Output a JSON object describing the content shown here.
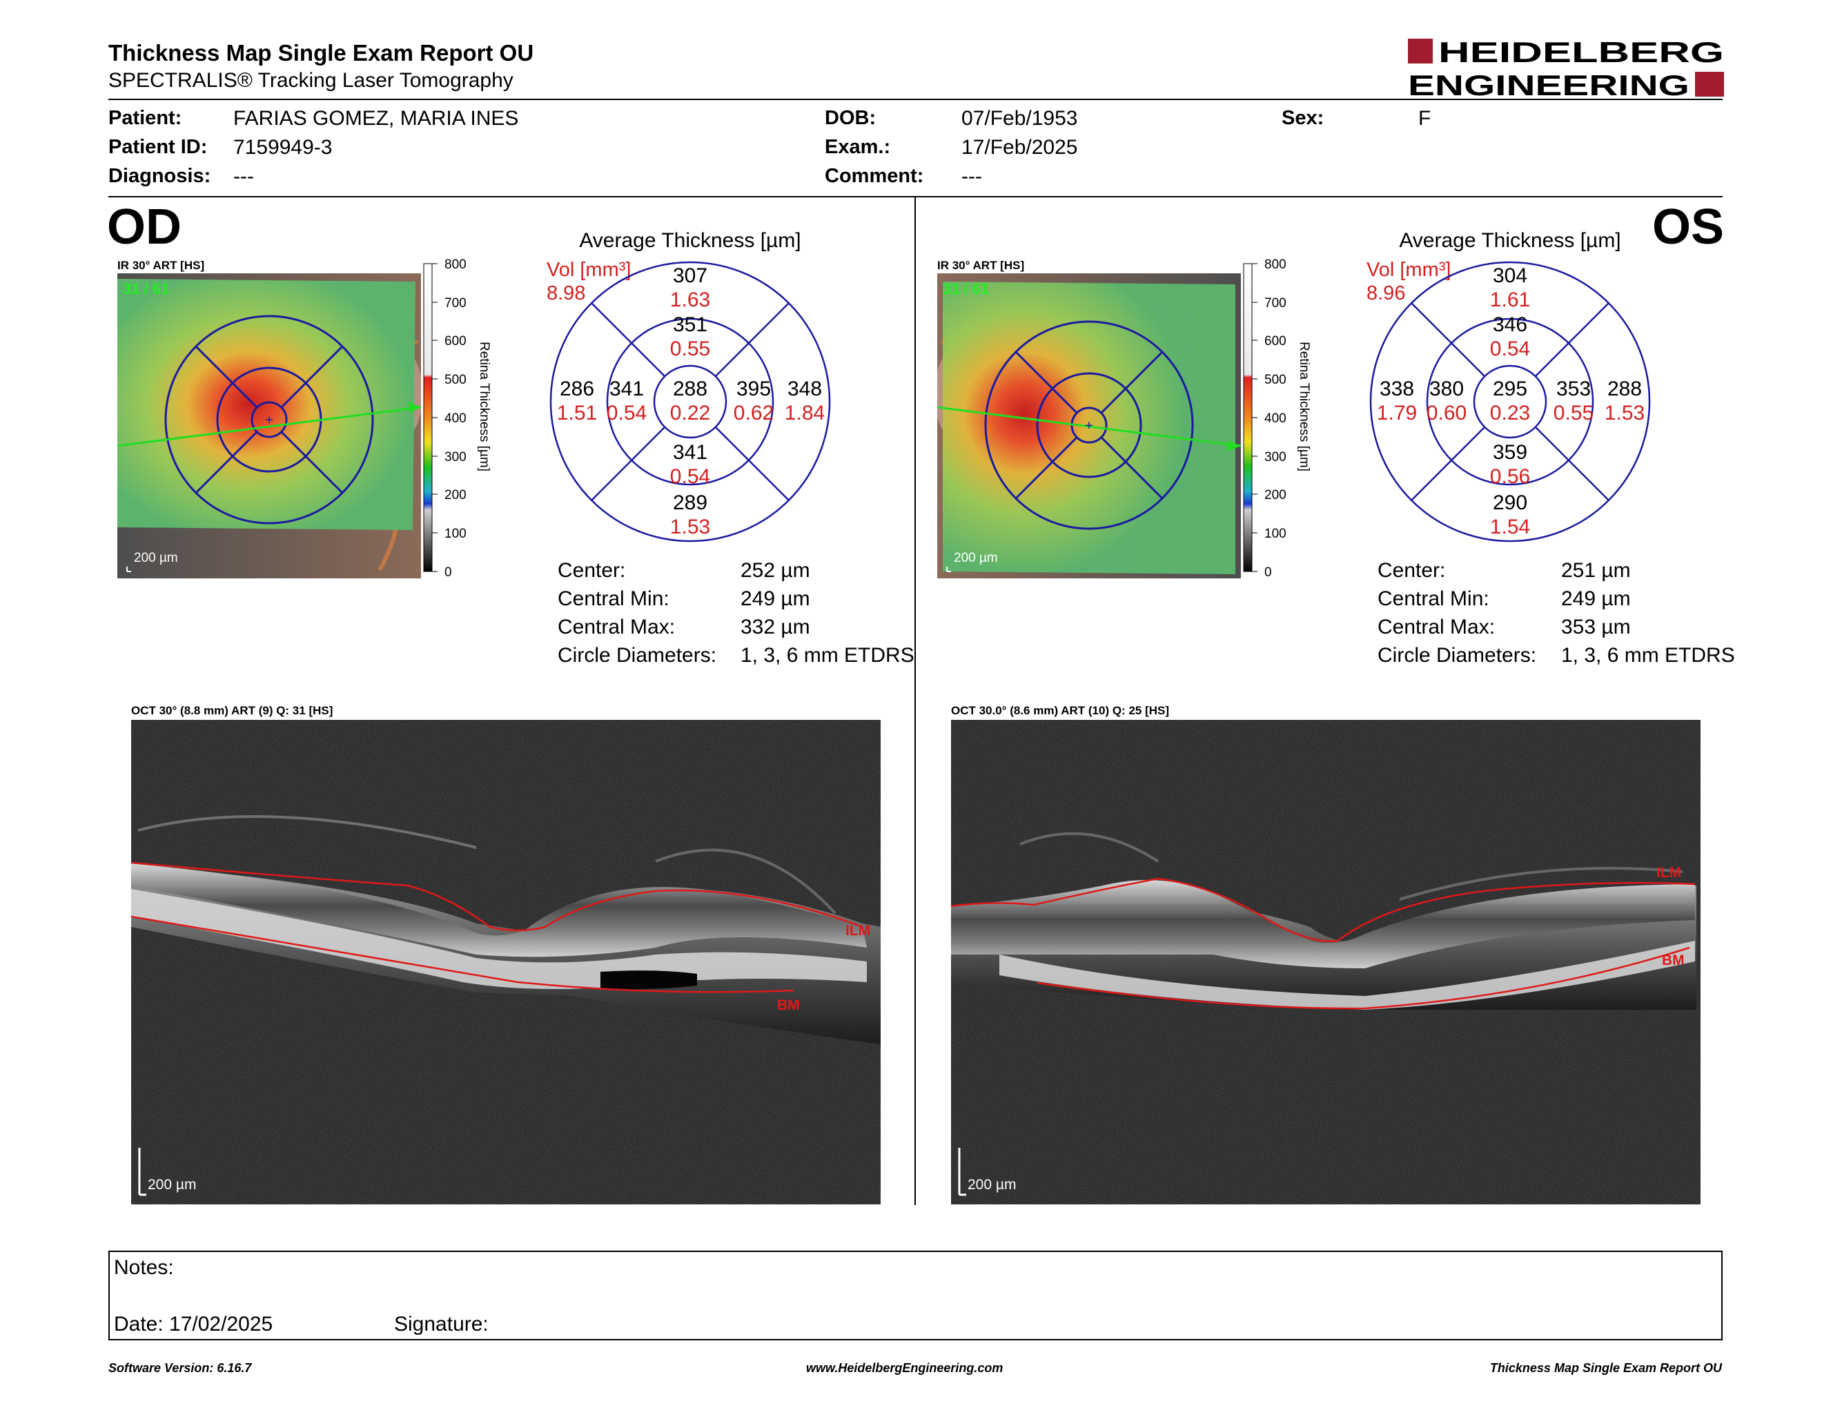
{
  "header": {
    "title": "Thickness Map Single Exam Report OU",
    "subtitle": "SPECTRALIS® Tracking Laser Tomography",
    "logo_line1": "HEIDELBERG",
    "logo_line2": "ENGINEERING"
  },
  "patient": {
    "patient_label": "Patient:",
    "patient_value": "FARIAS GOMEZ, MARIA INES",
    "id_label": "Patient ID:",
    "id_value": "7159949-3",
    "diagnosis_label": "Diagnosis:",
    "diagnosis_value": "---",
    "dob_label": "DOB:",
    "dob_value": "07/Feb/1953",
    "exam_label": "Exam.:",
    "exam_value": "17/Feb/2025",
    "comment_label": "Comment:",
    "comment_value": "---",
    "sex_label": "Sex:",
    "sex_value": "F"
  },
  "colorbar": {
    "ticks": [
      "800",
      "700",
      "600",
      "500",
      "400",
      "300",
      "200",
      "100",
      "0"
    ],
    "title": "Retina Thickness [µm]"
  },
  "od": {
    "eye": "OD",
    "ir_label": "IR 30° ART [HS]",
    "ir_counter": "31 / 61",
    "scale_label": "200 µm",
    "avg_title": "Average Thickness [µm]",
    "vol_label": "Vol [mm³]",
    "vol_total": "8.98",
    "sectors": {
      "center_t": "288",
      "center_v": "0.22",
      "inner_sup_t": "351",
      "inner_sup_v": "0.55",
      "inner_inf_t": "341",
      "inner_inf_v": "0.54",
      "inner_left_t": "341",
      "inner_left_v": "0.54",
      "inner_right_t": "395",
      "inner_right_v": "0.62",
      "outer_sup_t": "307",
      "outer_sup_v": "1.63",
      "outer_inf_t": "289",
      "outer_inf_v": "1.53",
      "outer_left_t": "286",
      "outer_left_v": "1.51",
      "outer_right_t": "348",
      "outer_right_v": "1.84"
    },
    "stats": [
      {
        "label": "Center:",
        "value": "252 µm"
      },
      {
        "label": "Central Min:",
        "value": "249 µm"
      },
      {
        "label": "Central Max:",
        "value": "332 µm"
      },
      {
        "label": "Circle Diameters:",
        "value": "1, 3, 6 mm ETDRS"
      }
    ],
    "oct_label": "OCT 30° (8.8 mm) ART (9) Q: 31 [HS]",
    "ilm": "ILM",
    "bm": "BM",
    "oct_scale": "200 µm"
  },
  "os": {
    "eye": "OS",
    "ir_label": "IR 30° ART [HS]",
    "ir_counter": "31 / 61",
    "scale_label": "200 µm",
    "avg_title": "Average Thickness [µm]",
    "vol_label": "Vol [mm³]",
    "vol_total": "8.96",
    "sectors": {
      "center_t": "295",
      "center_v": "0.23",
      "inner_sup_t": "346",
      "inner_sup_v": "0.54",
      "inner_inf_t": "359",
      "inner_inf_v": "0.56",
      "inner_left_t": "380",
      "inner_left_v": "0.60",
      "inner_right_t": "353",
      "inner_right_v": "0.55",
      "outer_sup_t": "304",
      "outer_sup_v": "1.61",
      "outer_inf_t": "290",
      "outer_inf_v": "1.54",
      "outer_left_t": "338",
      "outer_left_v": "1.79",
      "outer_right_t": "288",
      "outer_right_v": "1.53"
    },
    "stats": [
      {
        "label": "Center:",
        "value": "251 µm"
      },
      {
        "label": "Central Min:",
        "value": "249 µm"
      },
      {
        "label": "Central Max:",
        "value": "353 µm"
      },
      {
        "label": "Circle Diameters:",
        "value": "1, 3, 6 mm ETDRS"
      }
    ],
    "oct_label": "OCT 30.0° (8.6 mm) ART (10) Q: 25 [HS]",
    "ilm": "ILM",
    "bm": "BM",
    "oct_scale": "200 µm"
  },
  "notes": {
    "notes_label": "Notes:",
    "date_label": "Date: 17/02/2025",
    "signature_label": "Signature:"
  },
  "footer": {
    "software": "Software Version: 6.16.7",
    "website": "www.HeidelbergEngineering.com",
    "report_name": "Thickness Map Single Exam Report OU"
  },
  "colors": {
    "accent_red": "#a01c2e",
    "etdrs_blue": "#1a1aa0",
    "volume_red": "#d42020",
    "ilm_green": "#22dd22"
  }
}
